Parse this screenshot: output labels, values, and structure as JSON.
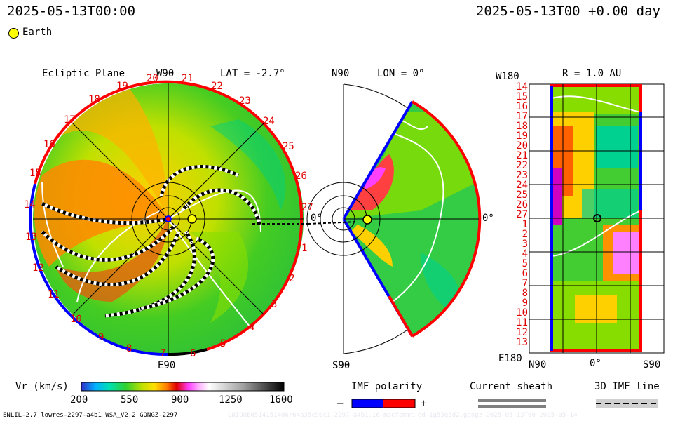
{
  "header": {
    "left_time": "2025-05-13T00:00",
    "right_time": "2025-05-13T00 +0.00 day",
    "legend_label": "Earth"
  },
  "ecliptic": {
    "title": "Ecliptic Plane",
    "top": "W90",
    "bottom": "E90",
    "lat": "LAT = -2.7°",
    "zero": "0°",
    "hours_left": [
      "20",
      "19",
      "18",
      "17",
      "16",
      "15",
      "14",
      "13",
      "12",
      "11",
      "10",
      "9",
      "8",
      "7"
    ],
    "hours_right": [
      "21",
      "22",
      "23",
      "24",
      "25",
      "26",
      "27",
      "1",
      "2",
      "3",
      "4",
      "5",
      "6"
    ]
  },
  "meridional": {
    "top": "N90",
    "bottom": "S90",
    "lon": "LON = 0°",
    "zero": "0°"
  },
  "earthview": {
    "title": "R = 1.0 AU",
    "top_left": "W180",
    "bottom_left": "E180",
    "x_left": "N90",
    "x_mid": "0°",
    "x_right": "S90",
    "rows": [
      "14",
      "15",
      "16",
      "17",
      "18",
      "19",
      "20",
      "21",
      "22",
      "23",
      "24",
      "25",
      "26",
      "27",
      "1",
      "2",
      "3",
      "4",
      "5",
      "6",
      "7",
      "8",
      "9",
      "10",
      "11",
      "12",
      "13"
    ]
  },
  "colorbar": {
    "label": "Vr (km/s)",
    "ticks": [
      "200",
      "550",
      "900",
      "1250",
      "1600"
    ]
  },
  "imf": {
    "label": "IMF polarity",
    "minus": "–",
    "plus": "+",
    "colors": {
      "negative": "#0000ff",
      "positive": "#ff0000"
    }
  },
  "sheath": {
    "label": "Current sheath"
  },
  "line3d": {
    "label": "3D IMF line"
  },
  "footer": {
    "left": "ENLIL-2.7 lowres-2297-a4b1 WSA_V2.2 GONGZ-2297",
    "right": "UNIQUE0514151406/64a35c90c1.2297-a4b1.16-mocfammt.ed-1g53q5d2.gongz-2025-05-13T00  2025-05-14"
  },
  "chart_data": {
    "type": "heatmap",
    "variable": "Vr (km/s)",
    "colorscale_range": [
      200,
      1600
    ],
    "colorbar_ticks": [
      200,
      550,
      900,
      1250,
      1600
    ],
    "panels": [
      "Ecliptic Plane",
      "LON = 0°",
      "R = 1.0 AU"
    ],
    "earth_marker": "Earth"
  }
}
